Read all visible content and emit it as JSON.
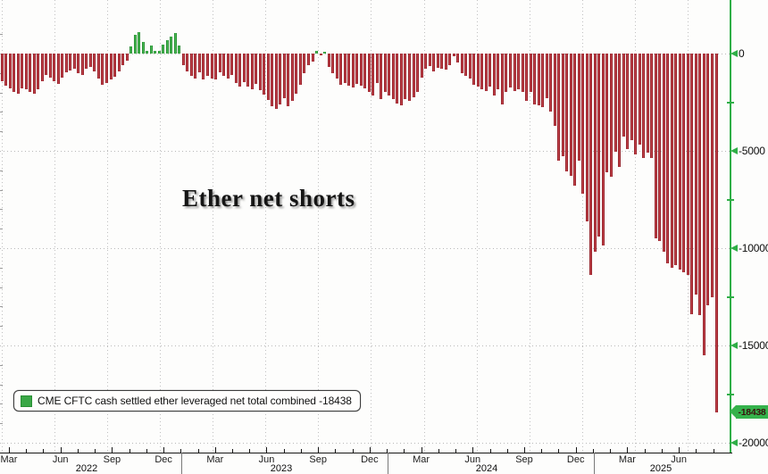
{
  "title": "Ether net shorts",
  "legend": {
    "label": "CME CFTC cash settled ether leveraged net total combined -18438"
  },
  "y_axis": {
    "tick_labels": [
      "0",
      "-5000",
      "-10000",
      "-15000",
      "-20000"
    ],
    "tick_values": [
      0,
      -5000,
      -10000,
      -15000,
      -20000
    ],
    "minor_tick_values": [
      -2500,
      -7500,
      -12500,
      -17500
    ],
    "current_value_badge": "-18438",
    "current_value": -18438
  },
  "x_axis": {
    "quarter_labels": [
      "Mar",
      "Jun",
      "Sep",
      "Dec",
      "Mar",
      "Jun",
      "Sep",
      "Dec",
      "Mar",
      "Jun",
      "Sep",
      "Dec",
      "Mar",
      "Jun"
    ],
    "year_labels": [
      "2022",
      "2023",
      "2024",
      "2025"
    ]
  },
  "colors": {
    "negative_bar": "#b5303a",
    "positive_bar": "#3aa746",
    "axis_green": "#2fae47",
    "badge_green": "#35b24b",
    "gridline": "#bbbbbb"
  },
  "chart_data": {
    "type": "bar",
    "title": "Ether net shorts",
    "frequency": "weekly",
    "x_range": [
      "2022-03",
      "2025-08"
    ],
    "ylim": [
      -20000,
      1500
    ],
    "y_ticks": [
      0,
      -5000,
      -10000,
      -15000,
      -20000
    ],
    "grid": "dotted",
    "legend_position": "bottom-left",
    "series": [
      {
        "name": "CME CFTC cash settled ether leveraged net total combined",
        "latest_value": -18438,
        "values": [
          -1400,
          -1650,
          -1800,
          -1950,
          -2050,
          -1800,
          -1850,
          -1950,
          -2050,
          -1850,
          -1400,
          -1100,
          -1250,
          -1400,
          -1550,
          -1250,
          -950,
          -850,
          -800,
          -1000,
          -1100,
          -800,
          -700,
          -900,
          -1300,
          -1600,
          -1500,
          -1350,
          -1200,
          -900,
          -600,
          -350,
          350,
          950,
          1100,
          600,
          150,
          400,
          120,
          150,
          450,
          700,
          850,
          1050,
          400,
          -600,
          -900,
          -1150,
          -1300,
          -950,
          -1350,
          -1150,
          -1300,
          -1350,
          -950,
          -1150,
          -1300,
          -1100,
          -1500,
          -1700,
          -1450,
          -1700,
          -1850,
          -1550,
          -1900,
          -2100,
          -2400,
          -2700,
          -2840,
          -2600,
          -2300,
          -2700,
          -2450,
          -2050,
          -1600,
          -1000,
          -600,
          -400,
          120,
          -100,
          100,
          -700,
          -1000,
          -1300,
          -1600,
          -1500,
          -1650,
          -1750,
          -1550,
          -1650,
          -1800,
          -1950,
          -2150,
          -1500,
          -2350,
          -1950,
          -2150,
          -2350,
          -2550,
          -2650,
          -2350,
          -2450,
          -2250,
          -1950,
          -1250,
          -800,
          -650,
          -900,
          -750,
          -765,
          -840,
          -610,
          -150,
          -460,
          -995,
          -1145,
          -1300,
          -1600,
          -1680,
          -1835,
          -1910,
          -1680,
          -2140,
          -1835,
          -2600,
          -1985,
          -1755,
          -1910,
          -1835,
          -1985,
          -2445,
          -1985,
          -2600,
          -2675,
          -2750,
          -2300,
          -3000,
          -3700,
          -5500,
          -5280,
          -6040,
          -6280,
          -6790,
          -5500,
          -7200,
          -8640,
          -11390,
          -10170,
          -9400,
          -9860,
          -6110,
          -6330,
          -5045,
          -5810,
          -4280,
          -4890,
          -4430,
          -5190,
          -4700,
          -5350,
          -5100,
          -5350,
          -9480,
          -9630,
          -10170,
          -10780,
          -11000,
          -10860,
          -11090,
          -11240,
          -11390,
          -13380,
          -12390,
          -13450,
          -15520,
          -12920,
          -12540,
          -18438
        ]
      }
    ]
  }
}
